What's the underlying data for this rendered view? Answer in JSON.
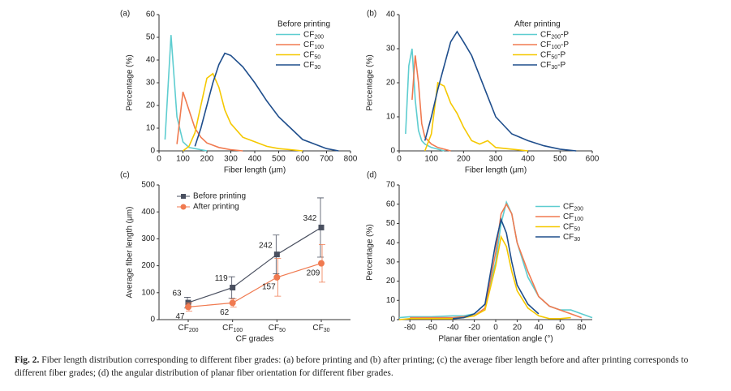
{
  "chart_data": [
    {
      "type": "line",
      "label": "(a)",
      "legend_title": "Before printing",
      "xlabel": "Fiber length (μm)",
      "ylabel": "Percentage (%)",
      "xlim": [
        0,
        800
      ],
      "xticks": [
        0,
        100,
        200,
        300,
        400,
        500,
        600,
        700,
        800
      ],
      "ylim": [
        0,
        60
      ],
      "yticks": [
        0,
        10,
        20,
        30,
        40,
        50,
        60
      ],
      "x": [
        0,
        25,
        50,
        75,
        100,
        125,
        150,
        175,
        200,
        225,
        250,
        275,
        300,
        350,
        400,
        450,
        500,
        550,
        600,
        650,
        700,
        750
      ],
      "series": [
        {
          "name": "CF200",
          "color": "#5ecdd0",
          "values": [
            null,
            5,
            51,
            15,
            4,
            1.5,
            1,
            0.5,
            0,
            null,
            null,
            null,
            null,
            null,
            null,
            null,
            null,
            null,
            null,
            null,
            null,
            null
          ]
        },
        {
          "name": "CF100",
          "color": "#f07a50",
          "values": [
            null,
            null,
            null,
            3,
            26,
            18,
            10,
            6,
            3.5,
            2.5,
            1.5,
            1,
            0.5,
            0,
            null,
            null,
            null,
            null,
            null,
            null,
            null,
            null
          ]
        },
        {
          "name": "CF50",
          "color": "#f5c800",
          "values": [
            null,
            null,
            null,
            null,
            0,
            2,
            8,
            20,
            32,
            34,
            28,
            18,
            12,
            6,
            4,
            2,
            1,
            0.5,
            0,
            null,
            null,
            null
          ]
        },
        {
          "name": "CF30",
          "color": "#1f4e8c",
          "values": [
            null,
            null,
            null,
            null,
            null,
            null,
            2,
            10,
            20,
            30,
            38,
            43,
            42,
            37,
            30,
            22,
            15,
            10,
            5,
            3,
            1,
            0
          ]
        }
      ]
    },
    {
      "type": "line",
      "label": "(b)",
      "legend_title": "After printing",
      "xlabel": "Fiber length (μm)",
      "ylabel": "Percentage (%)",
      "xlim": [
        0,
        600
      ],
      "xticks": [
        0,
        100,
        200,
        300,
        400,
        500,
        600
      ],
      "ylim": [
        0,
        40
      ],
      "yticks": [
        0,
        10,
        20,
        30,
        40
      ],
      "x": [
        0,
        20,
        30,
        40,
        50,
        60,
        70,
        80,
        100,
        120,
        140,
        160,
        180,
        200,
        225,
        250,
        275,
        300,
        350,
        400,
        450,
        500,
        550
      ],
      "series": [
        {
          "name": "CF200-P",
          "color": "#5ecdd0",
          "values": [
            null,
            5,
            25,
            30,
            15,
            6,
            3,
            2,
            1,
            0.5,
            0,
            null,
            null,
            null,
            null,
            null,
            null,
            null,
            null,
            null,
            null,
            null,
            null
          ]
        },
        {
          "name": "CF100-P",
          "color": "#f07a50",
          "values": [
            null,
            null,
            null,
            15,
            28,
            20,
            8,
            4,
            2,
            1,
            0.5,
            0,
            null,
            null,
            null,
            null,
            null,
            null,
            null,
            null,
            null,
            null,
            null
          ]
        },
        {
          "name": "CF50-P",
          "color": "#f5c800",
          "values": [
            null,
            null,
            null,
            null,
            null,
            null,
            null,
            0,
            5,
            20,
            19,
            14,
            11,
            7,
            3,
            2,
            3,
            1,
            0.5,
            0,
            null,
            null,
            null
          ]
        },
        {
          "name": "CF30-P",
          "color": "#1f4e8c",
          "values": [
            null,
            null,
            null,
            null,
            null,
            null,
            null,
            3,
            10,
            18,
            25,
            32,
            35,
            32,
            28,
            22,
            16,
            10,
            5,
            3,
            1.5,
            0.5,
            0
          ]
        }
      ]
    },
    {
      "type": "errorline",
      "label": "(c)",
      "xlabel": "CF grades",
      "ylabel": "Average fiber length (μm)",
      "categories": [
        "CF200",
        "CF100",
        "CF50",
        "CF30"
      ],
      "ylim": [
        0,
        500
      ],
      "yticks": [
        0,
        100,
        200,
        300,
        400,
        500
      ],
      "series": [
        {
          "name": "Before printing",
          "color": "#4a5060",
          "marker": "square",
          "values": [
            63,
            119,
            242,
            342
          ],
          "errors": [
            20,
            40,
            72,
            110
          ]
        },
        {
          "name": "After printing",
          "color": "#f07a50",
          "marker": "circle",
          "values": [
            47,
            62,
            157,
            209
          ],
          "errors": [
            15,
            15,
            70,
            70
          ]
        }
      ]
    },
    {
      "type": "line",
      "label": "(d)",
      "xlabel": "Planar fiber orientation angle (°)",
      "ylabel": "Percentage (%)",
      "xlim": [
        -90,
        90
      ],
      "xticks": [
        -80,
        -60,
        -40,
        -20,
        0,
        20,
        40,
        60,
        80
      ],
      "ylim": [
        0,
        70
      ],
      "yticks": [
        0,
        10,
        20,
        30,
        40,
        50,
        60,
        70
      ],
      "x": [
        -90,
        -80,
        -60,
        -40,
        -30,
        -20,
        -10,
        0,
        5,
        10,
        15,
        20,
        30,
        40,
        50,
        60,
        70,
        80,
        90
      ],
      "series": [
        {
          "name": "CF200",
          "color": "#5ecdd0",
          "values": [
            1,
            1.5,
            1.5,
            2,
            2,
            3,
            8,
            30,
            50,
            61,
            55,
            40,
            22,
            12,
            7,
            5,
            5,
            3,
            1
          ]
        },
        {
          "name": "CF100",
          "color": "#f07a50",
          "values": [
            null,
            1,
            1,
            1,
            1.5,
            2,
            6,
            35,
            55,
            60,
            55,
            40,
            25,
            12,
            7,
            5,
            3,
            1,
            null
          ]
        },
        {
          "name": "CF50",
          "color": "#f5c800",
          "values": [
            0,
            0.5,
            0.5,
            0.5,
            1,
            2,
            5,
            28,
            43,
            38,
            25,
            15,
            6,
            2,
            0.5,
            0.5,
            1,
            null,
            null
          ]
        },
        {
          "name": "CF30",
          "color": "#1f4e8c",
          "values": [
            null,
            null,
            null,
            0.5,
            1,
            3,
            8,
            40,
            52,
            45,
            30,
            18,
            8,
            3,
            null,
            null,
            null,
            null,
            null
          ]
        }
      ]
    }
  ],
  "caption": {
    "label": "Fig. 2.",
    "text": "Fiber length distribution corresponding to different fiber grades: (a) before printing and (b) after printing; (c) the average fiber length before and after printing corresponds to different fiber grades; (d) the angular distribution of planar fiber orientation for different fiber grades."
  }
}
